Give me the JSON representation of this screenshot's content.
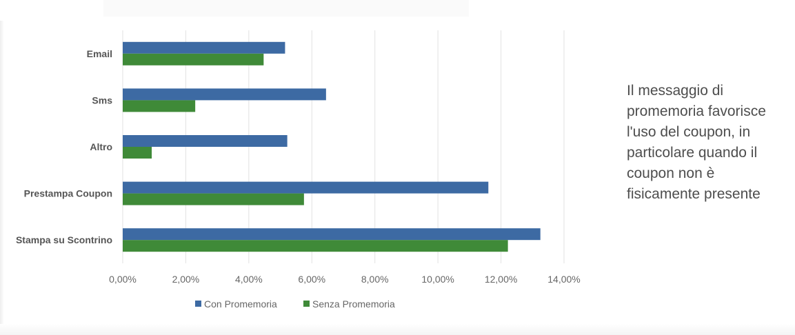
{
  "chart_data": {
    "type": "bar",
    "orientation": "horizontal",
    "categories": [
      "Email",
      "Sms",
      "Altro",
      "Prestampa Coupon",
      "Stampa su Scontrino"
    ],
    "series": [
      {
        "name": "Con Promemoria",
        "color": "#3d6aa3",
        "values": [
          5.15,
          6.45,
          5.22,
          11.6,
          13.25
        ]
      },
      {
        "name": "Senza Promemoria",
        "color": "#3f8a38",
        "values": [
          4.47,
          2.3,
          0.92,
          5.75,
          12.22
        ]
      }
    ],
    "x_ticks": [
      "0,00%",
      "2,00%",
      "4,00%",
      "6,00%",
      "8,00%",
      "10,00%",
      "12,00%",
      "14,00%"
    ],
    "xlim": [
      0,
      14
    ],
    "grid": true,
    "legend_position": "bottom"
  },
  "note": {
    "text": "Il messaggio di\npromemoria favorisce\nl'uso del coupon, in\nparticolare quando il\ncoupon non è\nfisicamente presente"
  }
}
